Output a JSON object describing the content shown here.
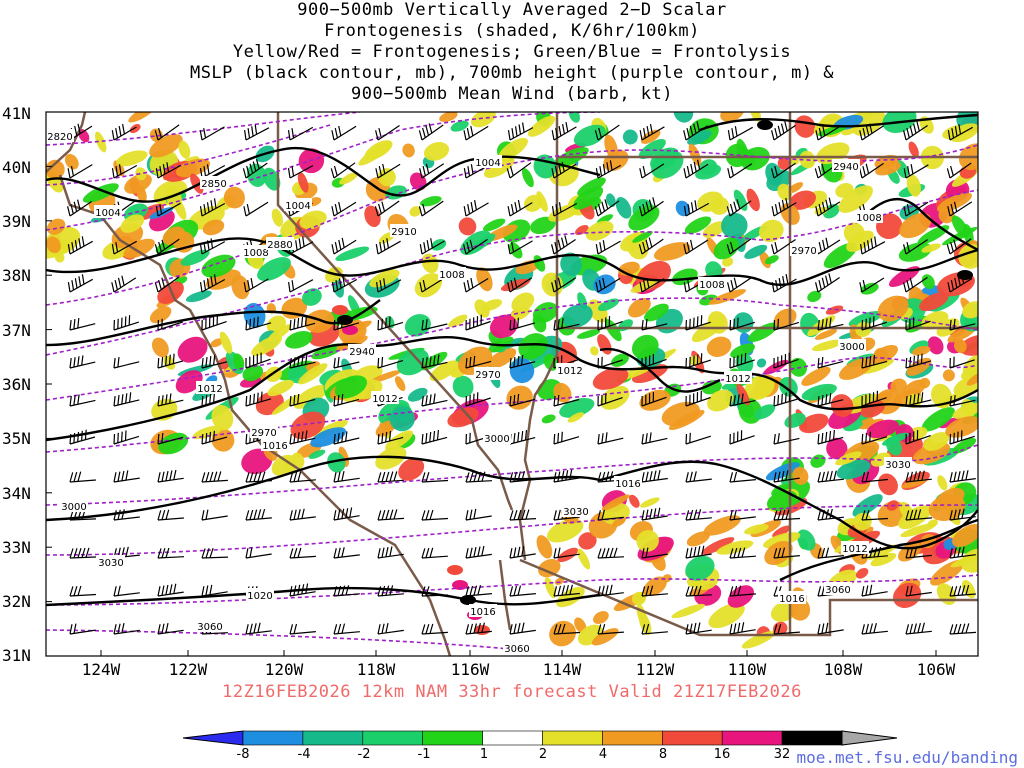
{
  "title_lines": [
    "900−500mb Vertically Averaged 2−D Scalar",
    "Frontogenesis (shaded, K/6hr/100km)",
    "Yellow/Red = Frontogenesis;  Green/Blue = Frontolysis",
    "MSLP (black contour, mb), 700mb height (purple contour, m) &",
    "900−500mb Mean Wind (barb, kt)"
  ],
  "lat_labels": [
    "41N",
    "40N",
    "39N",
    "38N",
    "37N",
    "36N",
    "35N",
    "34N",
    "33N",
    "32N",
    "31N"
  ],
  "lon_labels": [
    "124W",
    "122W",
    "120W",
    "118W",
    "116W",
    "114W",
    "112W",
    "110W",
    "108W",
    "106W"
  ],
  "run_info": "12Z16FEB2026  12km NAM 33hr forecast Valid 21Z17FEB2026",
  "colorbar": {
    "labels": [
      "-8",
      "-4",
      "-2",
      "-1",
      "1",
      "2",
      "4",
      "8",
      "16",
      "32"
    ],
    "colors": [
      "#2b2bf0",
      "#1e8fe0",
      "#16b98a",
      "#1bd06a",
      "#22d418",
      "#ffffff",
      "#e4e02a",
      "#f09a22",
      "#f24a3a",
      "#e8157e",
      "#000000",
      "#a8a8a8"
    ]
  },
  "contours": {
    "mslp_labels": [
      "1004",
      "1004",
      "1004",
      "1008",
      "1008",
      "1008",
      "1008",
      "1012",
      "1012",
      "1012",
      "1012",
      "1012",
      "1016",
      "1016",
      "1016",
      "1016",
      "1020"
    ],
    "height_labels": [
      "2820",
      "2850",
      "2880",
      "2910",
      "2940",
      "2940",
      "2970",
      "2970",
      "2970",
      "3000",
      "3000",
      "3000",
      "3030",
      "3030",
      "3030",
      "3060",
      "3060",
      "3060"
    ]
  },
  "credit": "moe.met.fsu.edu/banding"
}
